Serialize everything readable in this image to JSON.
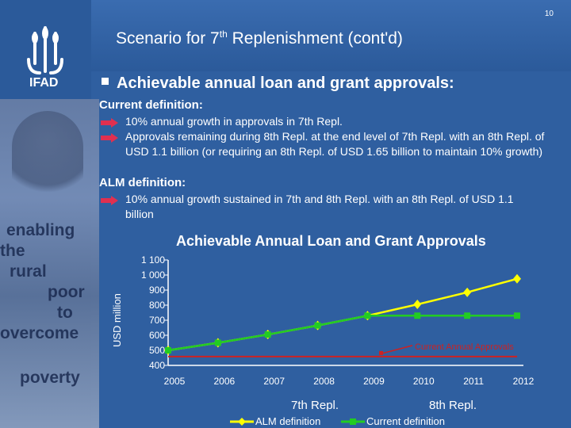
{
  "page_number": "10",
  "title": {
    "main": "Scenario for 7",
    "sup": "th",
    "rest": " Replenishment (cont'd)"
  },
  "logo": {
    "text": "IFAD"
  },
  "slogan": [
    "enabling",
    "the",
    "rural",
    "poor",
    "to",
    "overcome",
    "poverty"
  ],
  "bullet_heading": "Achievable annual loan and grant approvals:",
  "current_definition": {
    "heading": "Current definition:",
    "items": [
      "10% annual growth in approvals in 7th Repl.",
      "Approvals remaining during 8th Repl. at the end level of 7th Repl. with an 8th Repl. of USD 1.1 billion (or requiring an 8th Repl. of USD 1.65 billion to maintain 10% growth)"
    ]
  },
  "alm_definition": {
    "heading": "ALM definition:",
    "items": [
      "10% annual growth sustained in 7th and 8th Repl. with an 8th Repl. of USD 1.1 billion"
    ]
  },
  "colors": {
    "alm": "#ffff00",
    "current": "#22cc22",
    "current_annual": "#cc2222",
    "background": "#2f5fa0"
  },
  "chart_data": {
    "type": "line",
    "title": "Achievable Annual Loan and Grant Approvals",
    "ylabel": "USD million",
    "x": [
      "2005",
      "2006",
      "2007",
      "2008",
      "2009",
      "2010",
      "2011",
      "2012"
    ],
    "ylim": [
      400,
      1100
    ],
    "yticks": [
      "400",
      "500",
      "600",
      "700",
      "800",
      "900",
      "1 000",
      "1 100"
    ],
    "series": [
      {
        "name": "ALM definition",
        "values": [
          500,
          550,
          605,
          665,
          730,
          805,
          885,
          975
        ]
      },
      {
        "name": "Current definition",
        "values": [
          500,
          550,
          605,
          665,
          730,
          730,
          730,
          730
        ]
      }
    ],
    "reference_line": {
      "label": "Current Annual Approvals",
      "value": 490
    },
    "groups": [
      "7th Repl.",
      "8th Repl."
    ],
    "legend_position": "bottom"
  }
}
